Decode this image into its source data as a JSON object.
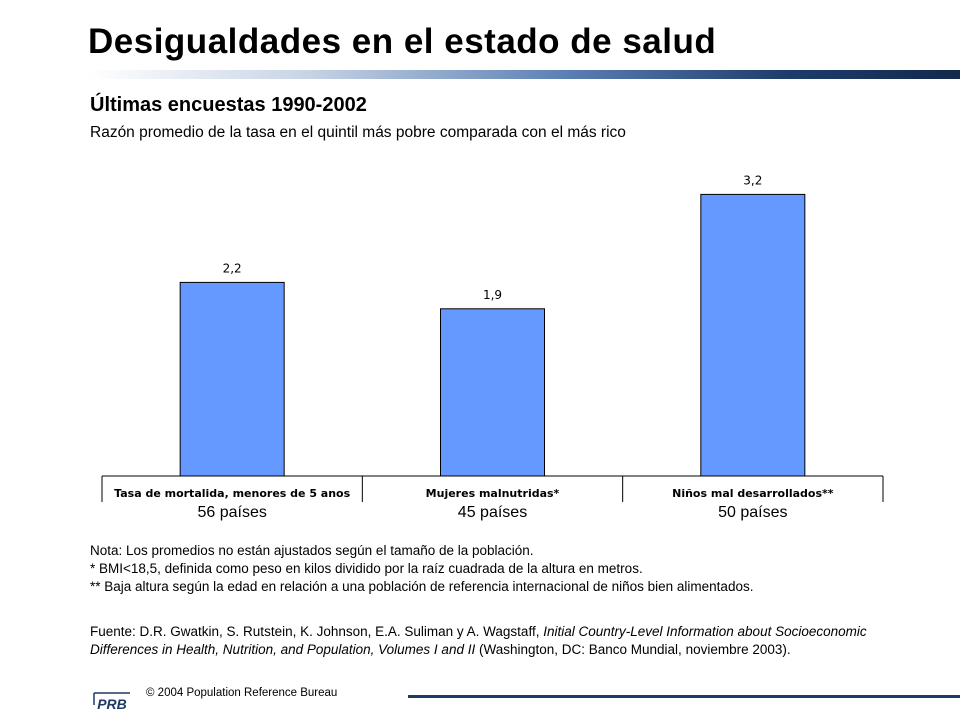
{
  "header": {
    "title": "Desigualdades en el estado de salud",
    "subtitle": "Últimas encuestas 1990-2002",
    "subtitle2": "Razón promedio de la tasa en el quintil más pobre comparada con el más rico"
  },
  "chart_data": {
    "type": "bar",
    "categories": [
      "Tasa de mortalida, menores de 5 anos",
      "Mujeres malnutridas*",
      "Niños mal desarrollados**"
    ],
    "values": [
      2.2,
      1.9,
      3.2
    ],
    "value_labels": [
      "2,2",
      "1,9",
      "3,2"
    ],
    "counts": [
      "56 países",
      "45 países",
      "50 países"
    ],
    "bar_color": "#6699ff",
    "ylim": [
      0,
      3.5
    ],
    "grid": false,
    "legend": "none"
  },
  "notes": [
    "Nota: Los promedios no están ajustados según el tamaño de la población.",
    "* BMI<18,5, definida como peso en kilos dividido por la raíz cuadrada de la altura en metros.",
    "** Baja altura según la edad en relación a una población de referencia internacional de niños bien alimentados."
  ],
  "source": {
    "prefix": "Fuente: D.R. Gwatkin, S. Rutstein, K. Johnson, E.A. Suliman y A. Wagstaff, ",
    "italic": "Initial Country-Level Information about Socioeconomic Differences in Health, Nutrition, and Population, Volumes I and II",
    "suffix": " (Washington, DC: Banco Mundial, noviembre 2003)."
  },
  "footer": {
    "logo_text": "PRB",
    "copyright": "© 2004 Population Reference Bureau"
  },
  "colors": {
    "title_bar_dark": "#13294d",
    "footer_line": "#1e3a66",
    "logo_blue": "#1e3a66"
  }
}
